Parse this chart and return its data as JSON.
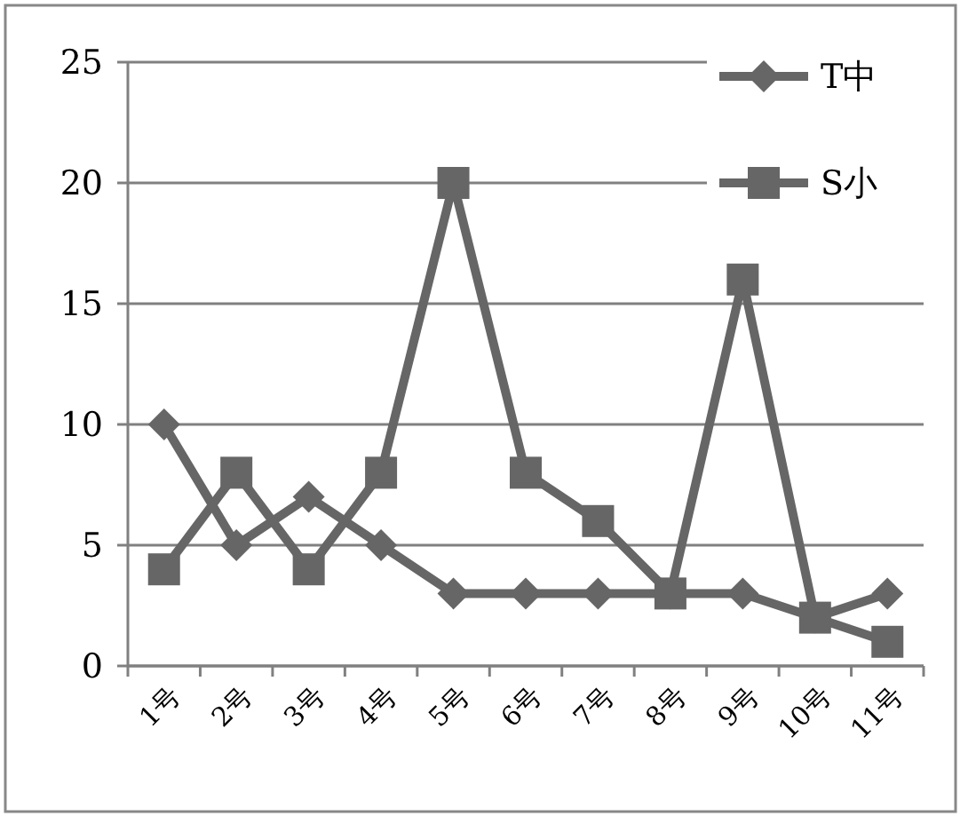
{
  "chart_data": {
    "type": "line",
    "categories": [
      "1号",
      "2号",
      "3号",
      "4号",
      "5号",
      "6号",
      "7号",
      "8号",
      "9号",
      "10号",
      "11号"
    ],
    "series": [
      {
        "name": "T中",
        "color": "#666666",
        "marker": "diamond",
        "values": [
          10,
          5,
          7,
          5,
          3,
          3,
          3,
          3,
          3,
          2,
          3
        ]
      },
      {
        "name": "S小",
        "color": "#666666",
        "marker": "square",
        "values": [
          4,
          8,
          4,
          8,
          20,
          8,
          6,
          3,
          16,
          2,
          1
        ]
      }
    ],
    "ylim": [
      0,
      25
    ],
    "yticks": [
      0,
      5,
      10,
      15,
      20,
      25
    ],
    "grid": "y",
    "legend": "top right",
    "line_style": "solid"
  }
}
